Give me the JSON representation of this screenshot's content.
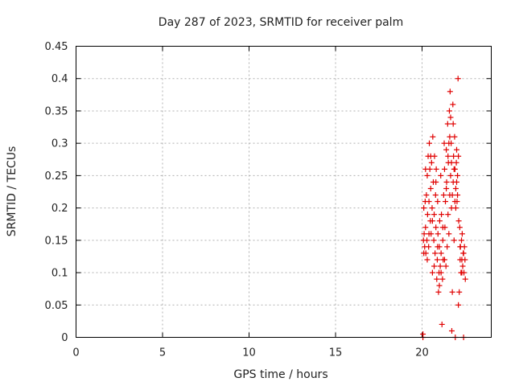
{
  "chart_data": {
    "type": "scatter",
    "title": "Day 287 of 2023, SRMTID for receiver palm",
    "xlabel": "GPS time / hours",
    "ylabel": "SRMTID / TECUs",
    "xlim": [
      0,
      24
    ],
    "ylim": [
      0,
      0.45
    ],
    "xticks": [
      0,
      5,
      10,
      15,
      20
    ],
    "xtick_labels": [
      "0",
      "5",
      "10",
      "15",
      "20"
    ],
    "yticks": [
      0,
      0.05,
      0.1,
      0.15,
      0.2,
      0.25,
      0.3,
      0.35,
      0.4,
      0.45
    ],
    "ytick_labels": [
      "0",
      "0.05",
      "0.1",
      "0.15",
      "0.2",
      "0.25",
      "0.3",
      "0.35",
      "0.4",
      "0.45"
    ],
    "grid": true,
    "marker": "plus",
    "color": "#e00000",
    "series": [
      {
        "name": "palm",
        "points": [
          [
            20.05,
            0.0
          ],
          [
            20.05,
            0.005
          ],
          [
            20.08,
            0.15
          ],
          [
            20.1,
            0.13
          ],
          [
            20.12,
            0.16
          ],
          [
            20.15,
            0.14
          ],
          [
            20.18,
            0.21
          ],
          [
            20.2,
            0.17
          ],
          [
            20.22,
            0.13
          ],
          [
            20.25,
            0.22
          ],
          [
            20.28,
            0.15
          ],
          [
            20.3,
            0.25
          ],
          [
            20.32,
            0.19
          ],
          [
            20.35,
            0.28
          ],
          [
            20.38,
            0.14
          ],
          [
            20.4,
            0.21
          ],
          [
            20.42,
            0.3
          ],
          [
            20.45,
            0.26
          ],
          [
            20.48,
            0.18
          ],
          [
            20.5,
            0.23
          ],
          [
            20.52,
            0.16
          ],
          [
            20.55,
            0.27
          ],
          [
            20.58,
            0.2
          ],
          [
            20.6,
            0.1
          ],
          [
            20.62,
            0.31
          ],
          [
            20.65,
            0.24
          ],
          [
            20.68,
            0.15
          ],
          [
            20.7,
            0.19
          ],
          [
            20.72,
            0.28
          ],
          [
            20.75,
            0.13
          ],
          [
            20.78,
            0.22
          ],
          [
            20.8,
            0.17
          ],
          [
            20.82,
            0.26
          ],
          [
            20.85,
            0.09
          ],
          [
            20.88,
            0.12
          ],
          [
            20.9,
            0.21
          ],
          [
            20.92,
            0.16
          ],
          [
            20.95,
            0.07
          ],
          [
            20.98,
            0.1
          ],
          [
            21.0,
            0.14
          ],
          [
            21.02,
            0.18
          ],
          [
            21.05,
            0.11
          ],
          [
            21.08,
            0.25
          ],
          [
            21.1,
            0.13
          ],
          [
            21.12,
            0.19
          ],
          [
            21.15,
            0.02
          ],
          [
            21.18,
            0.09
          ],
          [
            21.2,
            0.15
          ],
          [
            21.22,
            0.12
          ],
          [
            21.25,
            0.22
          ],
          [
            21.28,
            0.3
          ],
          [
            21.3,
            0.26
          ],
          [
            21.32,
            0.17
          ],
          [
            21.35,
            0.21
          ],
          [
            21.38,
            0.11
          ],
          [
            21.4,
            0.29
          ],
          [
            21.42,
            0.24
          ],
          [
            21.45,
            0.14
          ],
          [
            21.48,
            0.33
          ],
          [
            21.5,
            0.19
          ],
          [
            21.52,
            0.27
          ],
          [
            21.55,
            0.16
          ],
          [
            21.58,
            0.35
          ],
          [
            21.6,
            0.22
          ],
          [
            21.62,
            0.38
          ],
          [
            21.65,
            0.25
          ],
          [
            21.68,
            0.3
          ],
          [
            21.7,
            0.2
          ],
          [
            21.72,
            0.01
          ],
          [
            21.75,
            0.07
          ],
          [
            21.78,
            0.36
          ],
          [
            21.8,
            0.24
          ],
          [
            21.82,
            0.28
          ],
          [
            21.85,
            0.15
          ],
          [
            21.88,
            0.31
          ],
          [
            21.9,
            0.26
          ],
          [
            21.92,
            0.0
          ],
          [
            21.95,
            0.23
          ],
          [
            21.98,
            0.27
          ],
          [
            22.0,
            0.29
          ],
          [
            22.02,
            0.21
          ],
          [
            22.05,
            0.25
          ],
          [
            22.08,
            0.4
          ],
          [
            22.1,
            0.05
          ],
          [
            22.12,
            0.18
          ],
          [
            22.15,
            0.07
          ],
          [
            22.18,
            0.17
          ],
          [
            22.2,
            0.12
          ],
          [
            22.22,
            0.14
          ],
          [
            22.25,
            0.1
          ],
          [
            22.28,
            0.15
          ],
          [
            22.3,
            0.12
          ],
          [
            22.32,
            0.16
          ],
          [
            22.35,
            0.11
          ],
          [
            22.38,
            0.13
          ],
          [
            22.4,
            0.0
          ],
          [
            22.42,
            0.1
          ],
          [
            22.45,
            0.14
          ],
          [
            22.48,
            0.12
          ],
          [
            22.5,
            0.09
          ],
          [
            20.1,
            0.2
          ],
          [
            20.2,
            0.26
          ],
          [
            20.3,
            0.12
          ],
          [
            20.4,
            0.16
          ],
          [
            20.5,
            0.28
          ],
          [
            20.6,
            0.18
          ],
          [
            20.7,
            0.11
          ],
          [
            20.8,
            0.24
          ],
          [
            20.9,
            0.14
          ],
          [
            21.0,
            0.08
          ],
          [
            21.1,
            0.1
          ],
          [
            21.2,
            0.17
          ],
          [
            21.3,
            0.12
          ],
          [
            21.4,
            0.23
          ],
          [
            21.5,
            0.28
          ],
          [
            21.6,
            0.31
          ],
          [
            21.7,
            0.27
          ],
          [
            21.8,
            0.33
          ],
          [
            21.9,
            0.21
          ],
          [
            22.0,
            0.24
          ],
          [
            22.1,
            0.28
          ],
          [
            22.2,
            0.14
          ],
          [
            22.3,
            0.1
          ],
          [
            22.4,
            0.13
          ],
          [
            21.55,
            0.3
          ],
          [
            21.65,
            0.34
          ],
          [
            21.75,
            0.22
          ],
          [
            21.85,
            0.26
          ],
          [
            21.95,
            0.2
          ],
          [
            22.05,
            0.22
          ]
        ]
      }
    ]
  }
}
